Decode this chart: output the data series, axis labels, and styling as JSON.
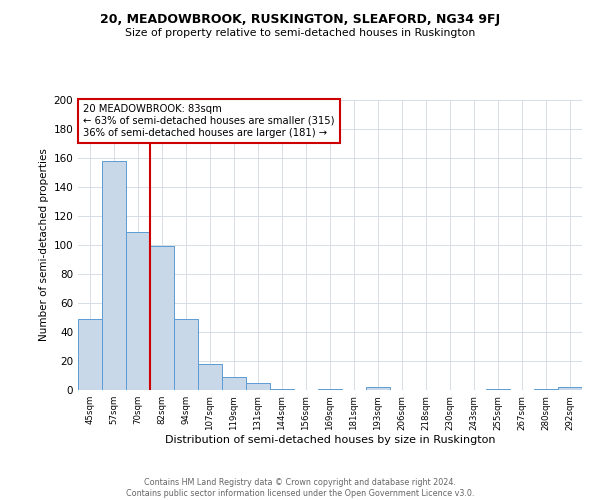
{
  "title": "20, MEADOWBROOK, RUSKINGTON, SLEAFORD, NG34 9FJ",
  "subtitle": "Size of property relative to semi-detached houses in Ruskington",
  "bar_labels": [
    "45sqm",
    "57sqm",
    "70sqm",
    "82sqm",
    "94sqm",
    "107sqm",
    "119sqm",
    "131sqm",
    "144sqm",
    "156sqm",
    "169sqm",
    "181sqm",
    "193sqm",
    "206sqm",
    "218sqm",
    "230sqm",
    "243sqm",
    "255sqm",
    "267sqm",
    "280sqm",
    "292sqm"
  ],
  "bar_values": [
    49,
    158,
    109,
    99,
    49,
    18,
    9,
    5,
    1,
    0,
    1,
    0,
    2,
    0,
    0,
    0,
    0,
    1,
    0,
    1,
    2
  ],
  "bar_color": "#c8d8e8",
  "bar_edge_color": "#5b9bd5",
  "vline_index": 3,
  "vline_color": "#cc0000",
  "annotation_title": "20 MEADOWBROOK: 83sqm",
  "annotation_line1": "← 63% of semi-detached houses are smaller (315)",
  "annotation_line2": "36% of semi-detached houses are larger (181) →",
  "annotation_box_color": "#cc0000",
  "xlabel": "Distribution of semi-detached houses by size in Ruskington",
  "ylabel": "Number of semi-detached properties",
  "ylim": [
    0,
    200
  ],
  "yticks": [
    0,
    20,
    40,
    60,
    80,
    100,
    120,
    140,
    160,
    180,
    200
  ],
  "footer_line1": "Contains HM Land Registry data © Crown copyright and database right 2024.",
  "footer_line2": "Contains public sector information licensed under the Open Government Licence v3.0.",
  "background_color": "#ffffff",
  "grid_color": "#d0d8e0"
}
